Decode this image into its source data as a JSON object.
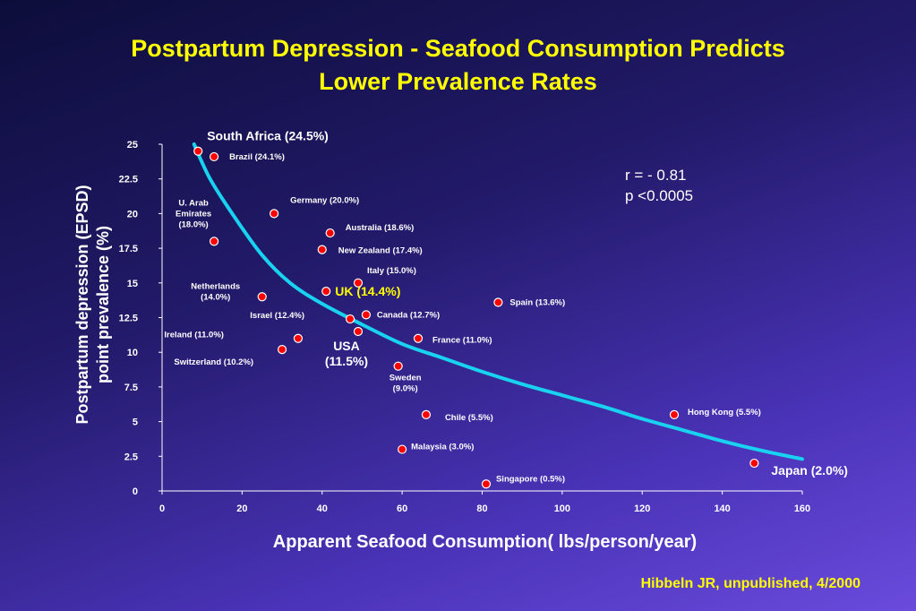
{
  "title_line1": "Postpartum Depression - Seafood Consumption Predicts",
  "title_line2": "Lower Prevalence Rates",
  "credit": "Hibbeln JR, unpublished, 4/2000",
  "stats": {
    "r": "r = - 0.81",
    "p": "p <0.0005"
  },
  "colors": {
    "title": "#ffff00",
    "point": "#ff0000",
    "curve": "#19d2f0",
    "axis": "#ffffff"
  },
  "chart_data": {
    "type": "scatter",
    "xlabel": "Apparent Seafood Consumption( lbs/person/year)",
    "ylabel": [
      "Postpartum depression (EPSD)",
      "point prevalence (%)"
    ],
    "xlim": [
      0,
      160
    ],
    "ylim": [
      0,
      25
    ],
    "x_ticks": [
      "0",
      "20",
      "40",
      "60",
      "80",
      "100",
      "120",
      "140",
      "160"
    ],
    "y_ticks": [
      "0",
      "2.5",
      "5",
      "7.5",
      "10",
      "12.5",
      "15",
      "17.5",
      "20",
      "22.5",
      "25"
    ],
    "grid": false,
    "trend": "fitted curve",
    "points": [
      {
        "label": "South Africa (24.5%)",
        "x": 9,
        "y": 24.5
      },
      {
        "label": "Brazil (24.1%)",
        "x": 13,
        "y": 24.1
      },
      {
        "label": "U. Arab Emirates (18.0%)",
        "x": 13,
        "y": 18.0
      },
      {
        "label": "Germany (20.0%)",
        "x": 28,
        "y": 20.0
      },
      {
        "label": "Australia (18.6%)",
        "x": 42,
        "y": 18.6
      },
      {
        "label": "New Zealand (17.4%)",
        "x": 40,
        "y": 17.4
      },
      {
        "label": "Italy (15.0%)",
        "x": 49,
        "y": 15.0
      },
      {
        "label": "Netherlands (14.0%)",
        "x": 25,
        "y": 14.0
      },
      {
        "label": "UK (14.4%)",
        "x": 41,
        "y": 14.4
      },
      {
        "label": "Spain (13.6%)",
        "x": 84,
        "y": 13.6
      },
      {
        "label": "Israel (12.4%)",
        "x": 47,
        "y": 12.4
      },
      {
        "label": "Canada (12.7%)",
        "x": 51,
        "y": 12.7
      },
      {
        "label": "Ireland (11.0%)",
        "x": 34,
        "y": 11.0
      },
      {
        "label": "Switzerland (10.2%)",
        "x": 30,
        "y": 10.2
      },
      {
        "label": "USA (11.5%)",
        "x": 49,
        "y": 11.5
      },
      {
        "label": "France (11.0%)",
        "x": 64,
        "y": 11.0
      },
      {
        "label": "Sweden (9.0%)",
        "x": 59,
        "y": 9.0
      },
      {
        "label": "Chile (5.5%)",
        "x": 66,
        "y": 5.5
      },
      {
        "label": "Hong Kong (5.5%)",
        "x": 128,
        "y": 5.5
      },
      {
        "label": "Malaysia (3.0%)",
        "x": 60,
        "y": 3.0
      },
      {
        "label": "Japan (2.0%)",
        "x": 148,
        "y": 2.0
      },
      {
        "label": "Singapore (0.5%)",
        "x": 81,
        "y": 0.5
      }
    ],
    "point_labels": [
      {
        "lines": [
          "South Africa (24.5%)"
        ],
        "big": true,
        "color": "#ffffff",
        "anchor": "start",
        "dx": 10,
        "dy": -12
      },
      {
        "lines": [
          "Brazil (24.1%)"
        ],
        "anchor": "start",
        "dx": 17,
        "dy": 3
      },
      {
        "lines": [
          "U. Arab",
          "Emirates",
          "(18.0%)"
        ],
        "anchor": "middle",
        "dx": -23,
        "dy": -40
      },
      {
        "lines": [
          "Germany (20.0%)"
        ],
        "anchor": "start",
        "dx": 18,
        "dy": -12
      },
      {
        "lines": [
          "Australia (18.6%)"
        ],
        "anchor": "start",
        "dx": 17,
        "dy": -3
      },
      {
        "lines": [
          "New Zealand (17.4%)"
        ],
        "anchor": "start",
        "dx": 18,
        "dy": 4
      },
      {
        "lines": [
          "Italy (15.0%)"
        ],
        "anchor": "start",
        "dx": 10,
        "dy": -11
      },
      {
        "lines": [
          "Netherlands",
          "(14.0%)"
        ],
        "anchor": "middle",
        "dx": -52,
        "dy": -9
      },
      {
        "lines": [
          "UK (14.4%)"
        ],
        "big": true,
        "color": "#ffff00",
        "anchor": "start",
        "dx": 10,
        "dy": 5
      },
      {
        "lines": [
          "Spain (13.6%)"
        ],
        "anchor": "start",
        "dx": 13,
        "dy": 3
      },
      {
        "lines": [
          "Israel (12.4%)"
        ],
        "anchor": "end",
        "dx": -51,
        "dy": -1
      },
      {
        "lines": [
          "Canada (12.7%)"
        ],
        "anchor": "start",
        "dx": 12,
        "dy": 3
      },
      {
        "lines": [
          "Ireland (11.0%)"
        ],
        "anchor": "end",
        "dx": -83,
        "dy": -1
      },
      {
        "lines": [
          "Switzerland (10.2%)"
        ],
        "anchor": "end",
        "dx": -32,
        "dy": 17
      },
      {
        "lines": [
          "USA",
          "(11.5%)"
        ],
        "big": true,
        "color": "#ffffff",
        "anchor": "middle",
        "dx": -13,
        "dy": 21
      },
      {
        "lines": [
          "France (11.0%)"
        ],
        "anchor": "start",
        "dx": 16,
        "dy": 5
      },
      {
        "lines": [
          "Sweden",
          "(9.0%)"
        ],
        "anchor": "middle",
        "dx": 8,
        "dy": 16
      },
      {
        "lines": [
          "Chile (5.5%)"
        ],
        "anchor": "start",
        "dx": 21,
        "dy": 6
      },
      {
        "lines": [
          "Hong Kong (5.5%)"
        ],
        "anchor": "start",
        "dx": 15,
        "dy": 0
      },
      {
        "lines": [
          "Malaysia (3.0%)"
        ],
        "anchor": "start",
        "dx": 10,
        "dy": 0
      },
      {
        "lines": [
          "Japan (2.0%)"
        ],
        "big": true,
        "color": "#ffffff",
        "anchor": "start",
        "dx": 19,
        "dy": 13
      },
      {
        "lines": [
          "Singapore (0.5%)"
        ],
        "anchor": "start",
        "dx": 11,
        "dy": -3
      }
    ],
    "curve": [
      [
        8,
        25.0
      ],
      [
        12,
        22.5
      ],
      [
        18,
        19.8
      ],
      [
        25,
        17.0
      ],
      [
        32,
        15.0
      ],
      [
        40,
        13.5
      ],
      [
        50,
        12.0
      ],
      [
        60,
        10.6
      ],
      [
        70,
        9.6
      ],
      [
        80,
        8.6
      ],
      [
        90,
        7.7
      ],
      [
        100,
        6.9
      ],
      [
        110,
        6.1
      ],
      [
        120,
        5.2
      ],
      [
        130,
        4.4
      ],
      [
        140,
        3.6
      ],
      [
        150,
        2.9
      ],
      [
        160,
        2.3
      ]
    ]
  }
}
